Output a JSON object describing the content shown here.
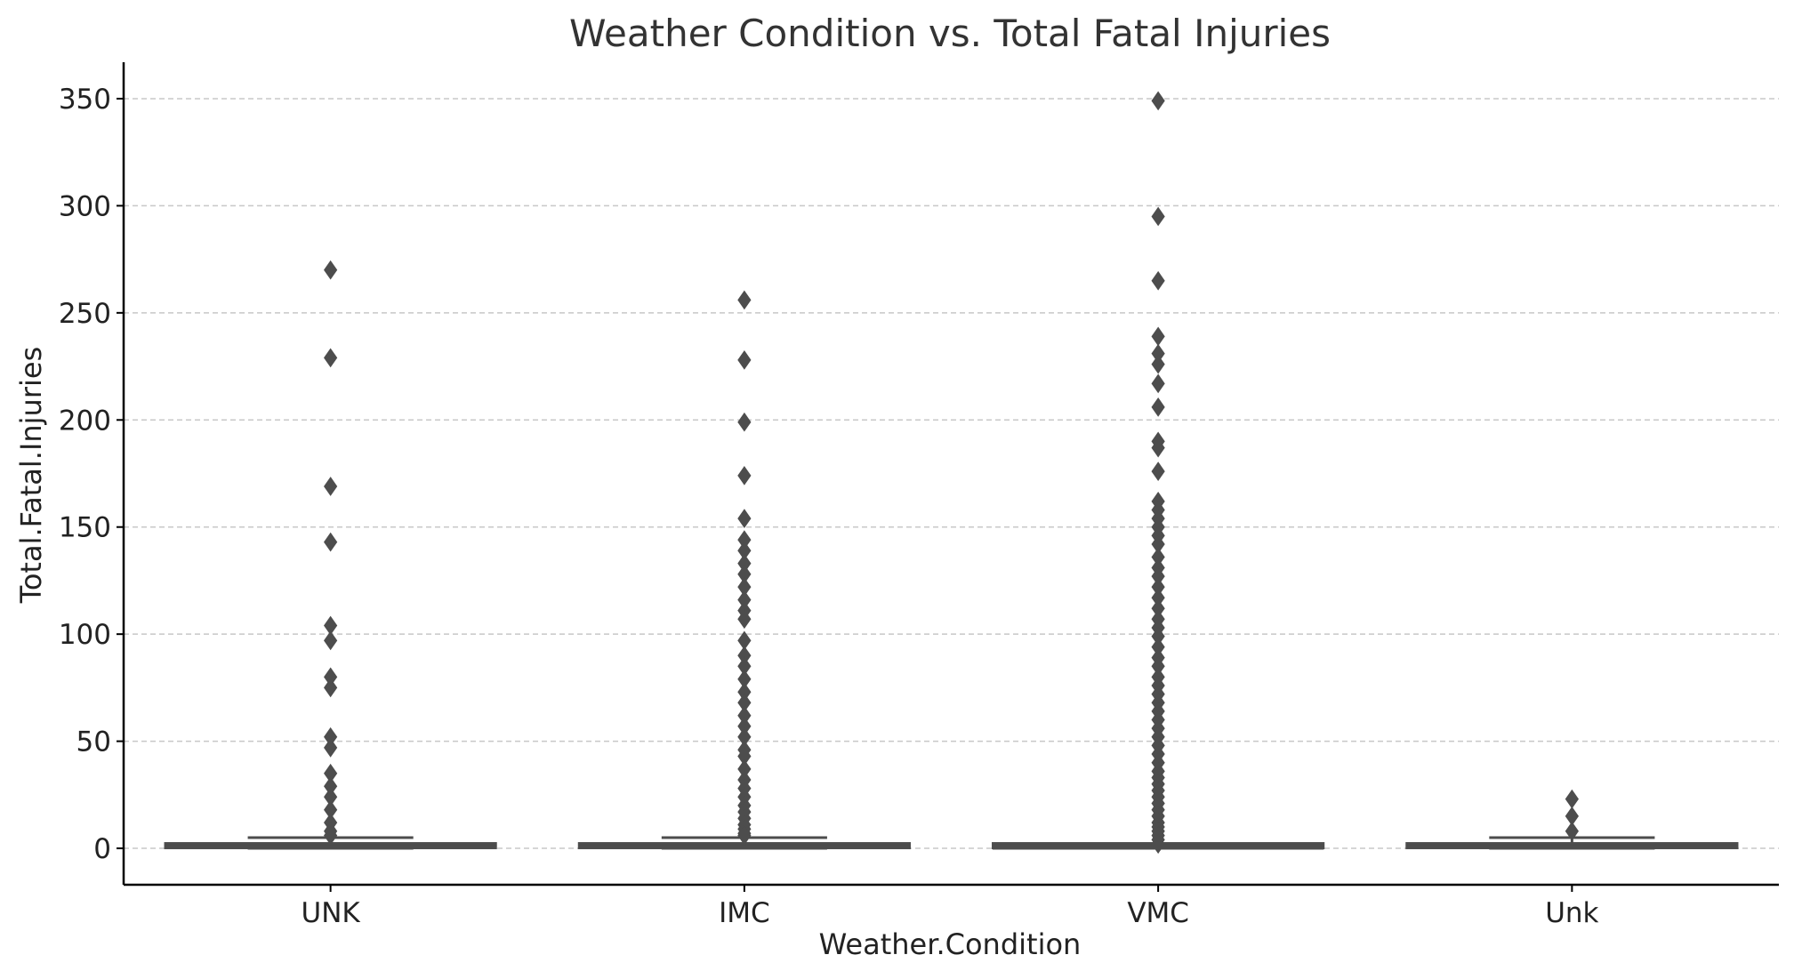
{
  "chart_data": {
    "type": "box",
    "title": "Weather Condition vs. Total Fatal Injuries",
    "xlabel": "Weather.Condition",
    "ylabel": "Total.Fatal.Injuries",
    "ylim": [
      -17,
      367
    ],
    "yticks": [
      0,
      50,
      100,
      150,
      200,
      250,
      300,
      350
    ],
    "grid": "horizontal-dashed",
    "colors": {
      "box": "#4d4d4d",
      "grid": "#c8c8c8",
      "axis": "#000000",
      "title": "#333333"
    },
    "categories": [
      "UNK",
      "IMC",
      "VMC",
      "Unk"
    ],
    "boxes": [
      {
        "category": "UNK",
        "whisker_low": 0,
        "q1": 0,
        "median": 1,
        "q3": 2,
        "whisker_high": 5,
        "outliers": [
          270,
          229,
          169,
          143,
          104,
          97,
          80,
          75,
          52,
          47,
          35,
          29,
          24,
          18,
          12,
          8,
          6
        ]
      },
      {
        "category": "IMC",
        "whisker_low": 0,
        "q1": 0,
        "median": 1,
        "q3": 2,
        "whisker_high": 5,
        "outliers": [
          256,
          228,
          199,
          174,
          154,
          144,
          139,
          133,
          128,
          122,
          116,
          111,
          107,
          97,
          90,
          85,
          79,
          73,
          68,
          62,
          57,
          52,
          46,
          43,
          37,
          32,
          28,
          24,
          20,
          17,
          14,
          11,
          9,
          7,
          6
        ]
      },
      {
        "category": "VMC",
        "whisker_low": 0,
        "q1": 0,
        "median": 0,
        "q3": 1,
        "whisker_high": 1,
        "outliers": [
          349,
          295,
          265,
          239,
          231,
          226,
          217,
          206,
          190,
          187,
          176,
          162,
          158,
          154,
          150,
          146,
          142,
          136,
          131,
          127,
          122,
          117,
          112,
          107,
          103,
          99,
          94,
          89,
          85,
          80,
          76,
          72,
          68,
          64,
          60,
          56,
          52,
          48,
          44,
          40,
          36,
          33,
          30,
          27,
          24,
          21,
          18,
          15,
          12,
          10,
          8,
          6,
          4,
          2
        ]
      },
      {
        "category": "Unk",
        "whisker_low": 0,
        "q1": 0,
        "median": 1,
        "q3": 2,
        "whisker_high": 5,
        "outliers": [
          23,
          15,
          8
        ]
      }
    ]
  }
}
